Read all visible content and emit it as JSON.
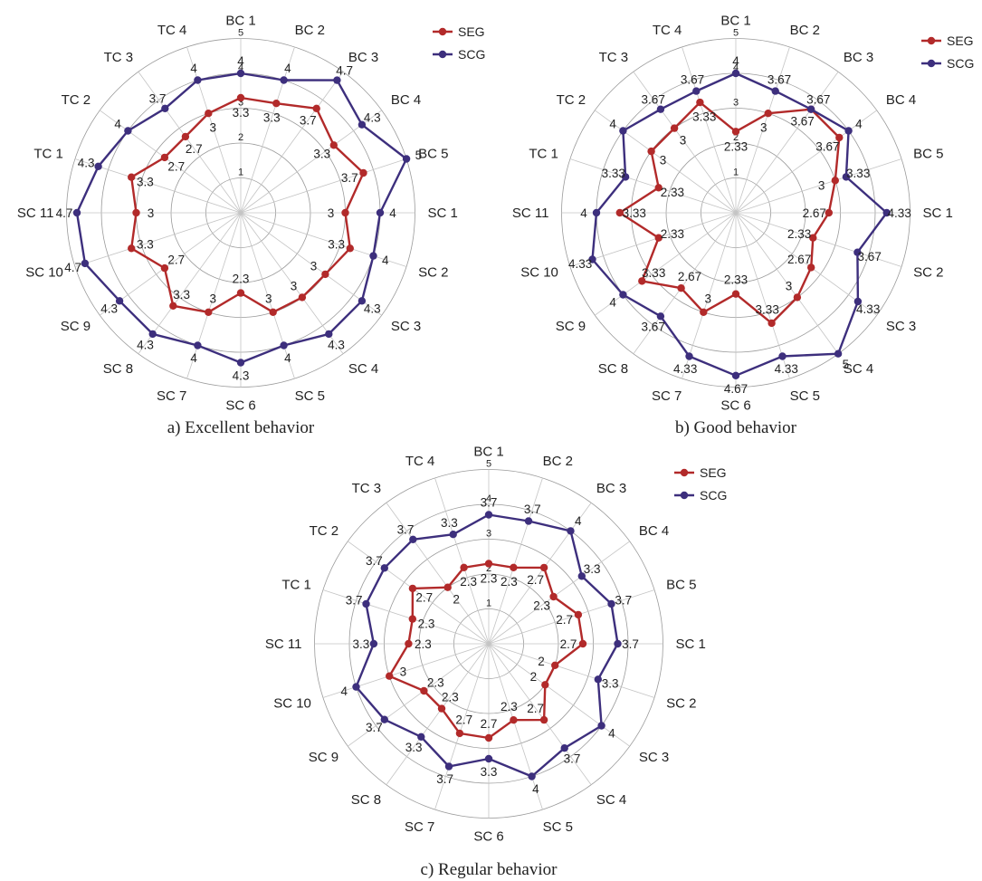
{
  "categories": [
    "BC 1",
    "BC 2",
    "BC 3",
    "BC 4",
    "BC 5",
    "SC 1",
    "SC 2",
    "SC 3",
    "SC 4",
    "SC 5",
    "SC 6",
    "SC 7",
    "SC 8",
    "SC 9",
    "SC 10",
    "SC 11",
    "TC 1",
    "TC 2",
    "TC 3",
    "TC 4"
  ],
  "legend": {
    "seg": "SEG",
    "scg": "SCG"
  },
  "colors": {
    "seg": "#b22a2a",
    "scg": "#3d2f7d",
    "grid": "#9a9a9a"
  },
  "chart_data": [
    {
      "type": "radar",
      "title": "a) Excellent behavior",
      "rlim": [
        0,
        5
      ],
      "ring_labels": [
        "1",
        "2",
        "3",
        "4",
        "5"
      ],
      "grid": true,
      "legend_position": "top-right",
      "categories": [
        "BC 1",
        "BC 2",
        "BC 3",
        "BC 4",
        "BC 5",
        "SC 1",
        "SC 2",
        "SC 3",
        "SC 4",
        "SC 5",
        "SC 6",
        "SC 7",
        "SC 8",
        "SC 9",
        "SC 10",
        "SC 11",
        "TC 1",
        "TC 2",
        "TC 3",
        "TC 4"
      ],
      "series": [
        {
          "name": "SEG",
          "values": [
            3.3,
            3.3,
            3.7,
            3.3,
            3.7,
            3,
            3.3,
            3,
            3,
            3,
            2.3,
            3,
            3.3,
            2.7,
            3.3,
            3,
            3.3,
            2.7,
            2.7,
            3
          ],
          "labels": [
            "3.3",
            "3.3",
            "3.7",
            "3.3",
            "3.7",
            "3",
            "3.3",
            "3",
            "3",
            "3",
            "2.3",
            "3",
            "3.3",
            "2.7",
            "3.3",
            "3",
            "3.3",
            "2.7",
            "2.7",
            "3"
          ]
        },
        {
          "name": "SCG",
          "values": [
            4,
            4,
            4.7,
            4.3,
            5,
            4,
            4,
            4.3,
            4.3,
            4,
            4.3,
            4,
            4.3,
            4.3,
            4.7,
            4.7,
            4.3,
            4,
            3.7,
            4
          ],
          "labels": [
            "4",
            "4",
            "4.7",
            "4.3",
            "5",
            "4",
            "4",
            "4.3",
            "4.3",
            "4",
            "4.3",
            "4",
            "4.3",
            "4.3",
            "4.7",
            "4.7",
            "4.3",
            "4",
            "3.7",
            "4"
          ]
        }
      ]
    },
    {
      "type": "radar",
      "title": "b) Good behavior",
      "rlim": [
        0,
        5
      ],
      "ring_labels": [
        "1",
        "2",
        "3",
        "4",
        "5"
      ],
      "grid": true,
      "legend_position": "top-right",
      "categories": [
        "BC 1",
        "BC 2",
        "BC 3",
        "BC 4",
        "BC 5",
        "SC 1",
        "SC 2",
        "SC 3",
        "SC 4",
        "SC 5",
        "SC 6",
        "SC 7",
        "SC 8",
        "SC 9",
        "SC 10",
        "SC 11",
        "TC 1",
        "TC 2",
        "TC 3",
        "TC 4"
      ],
      "series": [
        {
          "name": "SEG",
          "values": [
            2.33,
            3,
            3.67,
            3.67,
            3,
            2.67,
            2.33,
            2.67,
            3,
            3.33,
            2.33,
            3,
            2.67,
            3.33,
            2.33,
            3.33,
            2.33,
            3,
            3,
            3.33
          ],
          "labels": [
            "2.33",
            "3",
            "3.67",
            "3.67",
            "3",
            "2.67",
            "2.33",
            "2.67",
            "3",
            "3.33",
            "2.33",
            "3",
            "2.67",
            "3.33",
            "2.33",
            "3.33",
            "2.33",
            "3",
            "3",
            "3.33"
          ]
        },
        {
          "name": "SCG",
          "values": [
            4,
            3.67,
            3.67,
            4,
            3.33,
            4.33,
            3.67,
            4.33,
            5,
            4.33,
            4.67,
            4.33,
            3.67,
            4,
            4.33,
            4,
            3.33,
            4,
            3.67,
            3.67
          ],
          "labels": [
            "4",
            "3.67",
            "3.67",
            "4",
            "3.33",
            "4.33",
            "3.67",
            "4.33",
            "5",
            "4.33",
            "4.67",
            "4.33",
            "3.67",
            "4",
            "4.33",
            "4",
            "3.33",
            "4",
            "3.67",
            "3.67"
          ]
        }
      ]
    },
    {
      "type": "radar",
      "title": "c) Regular behavior",
      "rlim": [
        0,
        5
      ],
      "ring_labels": [
        "1",
        "2",
        "3",
        "4",
        "5"
      ],
      "grid": true,
      "legend_position": "top-right",
      "categories": [
        "BC 1",
        "BC 2",
        "BC 3",
        "BC 4",
        "BC 5",
        "SC 1",
        "SC 2",
        "SC 3",
        "SC 4",
        "SC 5",
        "SC 6",
        "SC 7",
        "SC 8",
        "SC 9",
        "SC 10",
        "SC 11",
        "TC 1",
        "TC 2",
        "TC 3",
        "TC 4"
      ],
      "series": [
        {
          "name": "SEG",
          "values": [
            2.3,
            2.3,
            2.7,
            2.3,
            2.7,
            2.7,
            2,
            2,
            2.7,
            2.3,
            2.7,
            2.7,
            2.3,
            2.3,
            3,
            2.3,
            2.3,
            2.7,
            2,
            2.3
          ],
          "labels": [
            "2.3",
            "2.3",
            "2.7",
            "2.3",
            "2.7",
            "2.7",
            "2",
            "2",
            "2.7",
            "2.3",
            "2.7",
            "2.7",
            "2.3",
            "2.3",
            "3",
            "2.3",
            "2.3",
            "2.7",
            "2",
            "2.3"
          ]
        },
        {
          "name": "SCG",
          "values": [
            3.7,
            3.7,
            4,
            3.3,
            3.7,
            3.7,
            3.3,
            4,
            3.7,
            4,
            3.3,
            3.7,
            3.3,
            3.7,
            4,
            3.3,
            3.7,
            3.7,
            3.7,
            3.3
          ],
          "labels": [
            "3.7",
            "3.7",
            "4",
            "3.3",
            "3.7",
            "3.7",
            "3.3",
            "4",
            "3.7",
            "4",
            "3.3",
            "3.7",
            "3.3",
            "3.7",
            "4",
            "3.3",
            "3.7",
            "3.7",
            "3.7",
            "3.3"
          ]
        }
      ]
    }
  ]
}
